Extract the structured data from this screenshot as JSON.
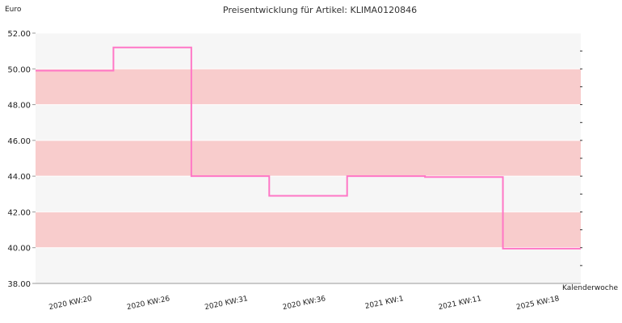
{
  "chart_data": {
    "type": "line",
    "step": true,
    "title": "Preisentwicklung für Artikel: KLIMA0120846",
    "ylabel": "Euro",
    "xlabel": "Kalenderwoche",
    "ylim": [
      38,
      52
    ],
    "yticks": [
      "38.00",
      "40.00",
      "42.00",
      "44.00",
      "46.00",
      "48.00",
      "50.00",
      "52.00"
    ],
    "categories": [
      "2020 KW:20",
      "2020 KW:26",
      "2020 KW:31",
      "2020 KW:36",
      "2021 KW:1",
      "2021 KW:11",
      "2025 KW:18"
    ],
    "series": [
      {
        "values": [
          49.9,
          51.2,
          44.0,
          42.9,
          44.0,
          43.95,
          39.95
        ]
      }
    ],
    "band_ranges": [
      [
        40,
        42
      ],
      [
        44,
        46
      ],
      [
        48,
        50
      ]
    ],
    "grid": true,
    "colors": {
      "line": "#ff77c6",
      "plot_bg": "#f6f6f6",
      "band": "#f8cccc",
      "grid": "#ffffff",
      "axis": "#999999"
    }
  }
}
